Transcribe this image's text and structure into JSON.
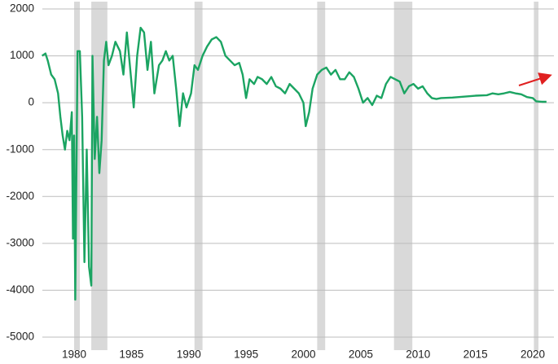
{
  "chart_data": {
    "type": "line",
    "x": [
      1977.2,
      1977.5,
      1977.7,
      1978.0,
      1978.3,
      1978.6,
      1978.8,
      1979.0,
      1979.2,
      1979.4,
      1979.6,
      1979.8,
      1979.9,
      1980.0,
      1980.1,
      1980.2,
      1980.3,
      1980.5,
      1980.7,
      1980.9,
      1981.1,
      1981.3,
      1981.5,
      1981.6,
      1981.8,
      1982.0,
      1982.2,
      1982.4,
      1982.6,
      1982.8,
      1983.0,
      1983.3,
      1983.6,
      1984.0,
      1984.3,
      1984.6,
      1984.9,
      1985.2,
      1985.5,
      1985.8,
      1986.1,
      1986.4,
      1986.7,
      1987.0,
      1987.4,
      1987.7,
      1988.0,
      1988.3,
      1988.6,
      1988.9,
      1989.2,
      1989.5,
      1989.8,
      1990.2,
      1990.5,
      1990.8,
      1991.2,
      1991.6,
      1992.0,
      1992.4,
      1992.8,
      1993.2,
      1993.6,
      1994.0,
      1994.4,
      1994.7,
      1995.0,
      1995.3,
      1995.7,
      1996.0,
      1996.4,
      1996.8,
      1997.2,
      1997.6,
      1998.0,
      1998.4,
      1998.8,
      1999.2,
      1999.6,
      2000.0,
      2000.2,
      2000.5,
      2000.8,
      2001.2,
      2001.6,
      2002.0,
      2002.4,
      2002.8,
      2003.2,
      2003.6,
      2004.0,
      2004.4,
      2004.8,
      2005.2,
      2005.6,
      2006.0,
      2006.4,
      2006.8,
      2007.2,
      2007.6,
      2008.0,
      2008.4,
      2008.8,
      2009.2,
      2009.6,
      2010.0,
      2010.4,
      2010.8,
      2011.2,
      2011.6,
      2012.0,
      2013.0,
      2014.0,
      2015.0,
      2016.0,
      2016.5,
      2017.0,
      2017.5,
      2018.0,
      2018.5,
      2019.0,
      2019.5,
      2020.0,
      2020.3,
      2020.8,
      2021.2
    ],
    "series": [
      {
        "color": "#1ba462",
        "values": [
          1000,
          1050,
          900,
          600,
          500,
          200,
          -300,
          -700,
          -1000,
          -600,
          -800,
          -200,
          -2900,
          -700,
          -4200,
          -1500,
          1100,
          1100,
          -300,
          -3400,
          -1000,
          -3500,
          -3900,
          1000,
          -1200,
          -300,
          -1500,
          -800,
          900,
          1300,
          800,
          1000,
          1300,
          1100,
          600,
          1500,
          700,
          -100,
          1000,
          1600,
          1500,
          700,
          1300,
          200,
          800,
          900,
          1100,
          900,
          1000,
          300,
          -500,
          200,
          -100,
          200,
          800,
          700,
          1000,
          1200,
          1350,
          1400,
          1300,
          1000,
          900,
          800,
          850,
          600,
          100,
          500,
          400,
          550,
          500,
          400,
          550,
          350,
          300,
          200,
          400,
          300,
          200,
          0,
          -500,
          -200,
          300,
          600,
          700,
          750,
          600,
          700,
          500,
          500,
          650,
          550,
          300,
          0,
          100,
          -50,
          150,
          100,
          400,
          550,
          500,
          450,
          200,
          350,
          400,
          300,
          350,
          200,
          100,
          80,
          100,
          110,
          130,
          150,
          160,
          200,
          180,
          200,
          230,
          200,
          180,
          120,
          100,
          30,
          20,
          20
        ]
      }
    ],
    "shaded_ranges": [
      [
        1980.0,
        1980.5
      ],
      [
        1981.5,
        1982.9
      ],
      [
        1990.5,
        1991.2
      ],
      [
        2001.2,
        2001.9
      ],
      [
        2007.9,
        2009.5
      ],
      [
        2020.1,
        2020.5
      ]
    ],
    "shade_color": "#d9d9d9",
    "xlim": [
      1977.23,
      2021.85
    ],
    "ylim": [
      -5000,
      2000
    ],
    "xticks": [
      1980,
      1985,
      1990,
      1995,
      2000,
      2005,
      2010,
      2015,
      2020
    ],
    "yticks": [
      -5000,
      -4000,
      -3000,
      -2000,
      -1000,
      0,
      1000,
      2000
    ],
    "grid": true
  }
}
